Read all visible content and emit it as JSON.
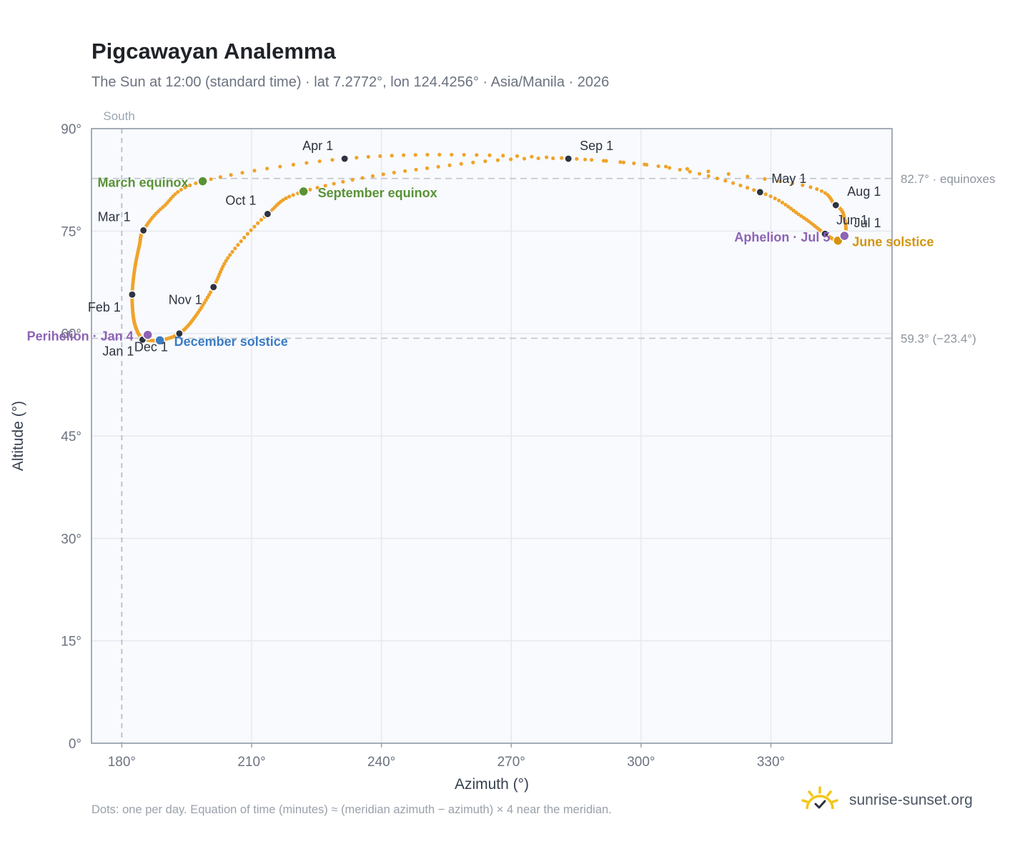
{
  "title": "Pigcawayan Analemma",
  "subtitle": "The Sun at 12:00 (standard time) · lat 7.2772°, lon 124.4256° · Asia/Manila · 2026",
  "footnote": "Dots: one per day. Equation of time (minutes) ≈ (meridian azimuth − azimuth) × 4 near the meridian.",
  "brand": {
    "label": "sunrise-sunset.org",
    "icon": "sun-logo-icon",
    "color": "#f5c518"
  },
  "chart_data": {
    "type": "scatter",
    "xlabel": "Azimuth (°)",
    "ylabel": "Altitude (°)",
    "xlim": [
      173,
      358
    ],
    "ylim": [
      0,
      90
    ],
    "x_ticks": [
      180,
      210,
      240,
      270,
      300,
      330
    ],
    "x_tick_labels": [
      "180°",
      "210°",
      "240°",
      "270°",
      "300°",
      "330°"
    ],
    "y_ticks": [
      0,
      15,
      30,
      45,
      60,
      75,
      90
    ],
    "y_tick_labels": [
      "0°",
      "15°",
      "30°",
      "45°",
      "60°",
      "75°",
      "90°"
    ],
    "grid": true,
    "meridian": {
      "azimuth": 180,
      "label": "South"
    },
    "reference_lines": [
      {
        "altitude": 82.7,
        "label": "82.7° · equinoxes"
      },
      {
        "altitude": 59.3,
        "label": "59.3° (−23.4°)"
      }
    ],
    "colors": {
      "path": "#f0a32a",
      "month_marker": "#2d3340",
      "equinox": "#5a9236",
      "december_solstice": "#3b7cc4",
      "june_solstice": "#d49410",
      "apsis": "#8e63b5",
      "plot_bg": "#f8fafd",
      "grid": "#e5e9ef",
      "reference": "#c3c9d1"
    },
    "daily_path_keypoints": [
      {
        "date": "Jan 1",
        "az": 184.8,
        "alt": 59.1
      },
      {
        "date": "Jan 10",
        "az": 183.6,
        "alt": 60.3
      },
      {
        "date": "Jan 20",
        "az": 182.7,
        "alt": 62.3
      },
      {
        "date": "Feb 1",
        "az": 182.4,
        "alt": 65.7
      },
      {
        "date": "Feb 10",
        "az": 183.0,
        "alt": 69.5
      },
      {
        "date": "Feb 20",
        "az": 184.1,
        "alt": 73.0
      },
      {
        "date": "Mar 1",
        "az": 185.0,
        "alt": 75.1
      },
      {
        "date": "Mar 10",
        "az": 189.5,
        "alt": 78.5
      },
      {
        "date": "Mar 20",
        "az": 198.7,
        "alt": 82.3
      },
      {
        "date": "Apr 1",
        "az": 231.5,
        "alt": 85.6
      },
      {
        "date": "Apr 10",
        "az": 265.0,
        "alt": 86.1
      },
      {
        "date": "Apr 20",
        "az": 304.0,
        "alt": 84.5
      },
      {
        "date": "May 1",
        "az": 327.5,
        "alt": 80.7
      },
      {
        "date": "May 15",
        "az": 337.0,
        "alt": 77.2
      },
      {
        "date": "Jun 1",
        "az": 342.5,
        "alt": 74.6
      },
      {
        "date": "Jun 21",
        "az": 345.5,
        "alt": 73.6
      },
      {
        "date": "Jul 1",
        "az": 347.2,
        "alt": 74.5
      },
      {
        "date": "Jul 15",
        "az": 347.0,
        "alt": 76.8
      },
      {
        "date": "Aug 1",
        "az": 345.0,
        "alt": 78.8
      },
      {
        "date": "Aug 15",
        "az": 335.0,
        "alt": 82.0
      },
      {
        "date": "Sep 1",
        "az": 283.2,
        "alt": 85.6
      },
      {
        "date": "Sep 10",
        "az": 248.0,
        "alt": 84.0
      },
      {
        "date": "Sep 22",
        "az": 222.0,
        "alt": 80.8
      },
      {
        "date": "Oct 1",
        "az": 213.7,
        "alt": 77.5
      },
      {
        "date": "Oct 15",
        "az": 205.0,
        "alt": 71.5
      },
      {
        "date": "Nov 1",
        "az": 201.2,
        "alt": 66.8
      },
      {
        "date": "Nov 15",
        "az": 197.0,
        "alt": 62.5
      },
      {
        "date": "Dec 1",
        "az": 193.3,
        "alt": 60.0
      },
      {
        "date": "Dec 21",
        "az": 188.8,
        "alt": 59.0
      },
      {
        "date": "Dec 31",
        "az": 185.3,
        "alt": 59.1
      }
    ],
    "month_markers": [
      {
        "label": "Jan 1",
        "az": 184.8,
        "alt": 59.1,
        "anchor": "end",
        "dx": -12,
        "dy": 22
      },
      {
        "label": "Feb 1",
        "az": 182.4,
        "alt": 65.7,
        "anchor": "end",
        "dx": -16,
        "dy": 24
      },
      {
        "label": "Mar 1",
        "az": 185.0,
        "alt": 75.1,
        "anchor": "end",
        "dx": -18,
        "dy": -13
      },
      {
        "label": "Apr 1",
        "az": 231.5,
        "alt": 85.6,
        "anchor": "end",
        "dx": -16,
        "dy": -12
      },
      {
        "label": "May 1",
        "az": 327.5,
        "alt": 80.7,
        "anchor": "start",
        "dx": 16,
        "dy": -13
      },
      {
        "label": "Jun 1",
        "az": 342.5,
        "alt": 74.6,
        "anchor": "start",
        "dx": 16,
        "dy": -13
      },
      {
        "label": "Jul 1",
        "az": 347.2,
        "alt": 74.5,
        "anchor": "start",
        "dx": 12,
        "dy": -10
      },
      {
        "label": "Aug 1",
        "az": 345.0,
        "alt": 78.8,
        "anchor": "start",
        "dx": 16,
        "dy": -13
      },
      {
        "label": "Sep 1",
        "az": 283.2,
        "alt": 85.6,
        "anchor": "start",
        "dx": 16,
        "dy": -12
      },
      {
        "label": "Oct 1",
        "az": 213.7,
        "alt": 77.5,
        "anchor": "end",
        "dx": -16,
        "dy": -13
      },
      {
        "label": "Nov 1",
        "az": 201.2,
        "alt": 66.8,
        "anchor": "end",
        "dx": -16,
        "dy": 24
      },
      {
        "label": "Dec 1",
        "az": 193.3,
        "alt": 60.0,
        "anchor": "end",
        "dx": -16,
        "dy": 25
      }
    ],
    "special_markers": [
      {
        "label": "March equinox",
        "az": 198.7,
        "alt": 82.3,
        "color": "#5a9236",
        "anchor": "end",
        "dx": -20,
        "dy": 8
      },
      {
        "label": "September equinox",
        "az": 222.0,
        "alt": 80.8,
        "color": "#5a9236",
        "anchor": "start",
        "dx": 20,
        "dy": 8
      },
      {
        "label": "December solstice",
        "az": 188.8,
        "alt": 59.0,
        "color": "#3b7cc4",
        "anchor": "start",
        "dx": 20,
        "dy": 8
      },
      {
        "label": "June solstice",
        "az": 345.5,
        "alt": 73.6,
        "color": "#d49410",
        "anchor": "start",
        "dx": 20,
        "dy": 8
      },
      {
        "label": "Perihelion · Jan 4",
        "az": 186.0,
        "alt": 59.8,
        "color": "#8e63b5",
        "anchor": "end",
        "dx": -20,
        "dy": 8
      },
      {
        "label": "Aphelion · Jul 5",
        "az": 347.0,
        "alt": 74.3,
        "color": "#8e63b5",
        "anchor": "end",
        "dx": -20,
        "dy": 8
      }
    ]
  }
}
